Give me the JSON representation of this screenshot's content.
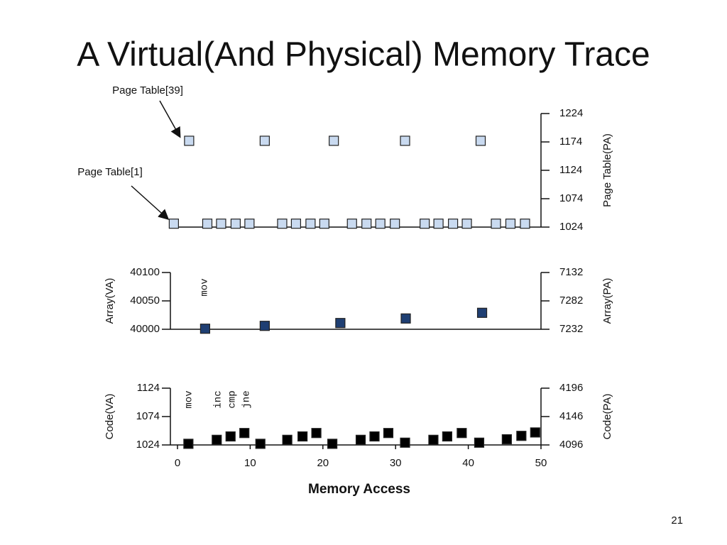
{
  "title": "A Virtual(And Physical) Memory Trace",
  "page_number": "21",
  "chart_data": [
    {
      "type": "scatter",
      "y2label": "Page Table(PA)",
      "xlim": [
        0,
        50
      ],
      "y2lim": [
        1024,
        1224
      ],
      "y2ticks": [
        1024,
        1074,
        1124,
        1174,
        1224
      ],
      "annotations": [
        "Page Table[39]",
        "Page Table[1]"
      ],
      "series": [
        {
          "color": "#c9daf0",
          "axis": "y2",
          "x": [
            1.6,
            12,
            21.5,
            31.3,
            41.7
          ],
          "values": [
            1176,
            1176,
            1176,
            1176,
            1176
          ]
        },
        {
          "color": "#c9daf0",
          "axis": "y2",
          "x": [
            -0.5,
            4.1,
            6.0,
            8.0,
            9.9,
            14.4,
            16.3,
            18.3,
            20.2,
            24.0,
            26.0,
            27.9,
            29.9,
            34.0,
            35.9,
            37.9,
            39.8,
            43.8,
            45.8,
            47.8
          ],
          "values": [
            1030,
            1030,
            1030,
            1030,
            1030,
            1030,
            1030,
            1030,
            1030,
            1030,
            1030,
            1030,
            1030,
            1030,
            1030,
            1030,
            1030,
            1030,
            1030,
            1030
          ]
        }
      ]
    },
    {
      "type": "scatter",
      "ylabel": "Array(VA)",
      "y2label": "Array(PA)",
      "xlim": [
        0,
        50
      ],
      "ylim": [
        40000,
        40100
      ],
      "yticks": [
        40000,
        40050,
        40100
      ],
      "y2tick_labels": [
        "7232",
        "7282",
        "7132"
      ],
      "annotations": [
        "mov"
      ],
      "series": [
        {
          "color": "#1f3f73",
          "x": [
            3.8,
            12.0,
            22.4,
            31.4,
            41.9
          ],
          "values": [
            40001,
            40006,
            40011,
            40019,
            40029
          ]
        }
      ]
    },
    {
      "type": "scatter",
      "ylabel": "Code(VA)",
      "y2label": "Code(PA)",
      "xlabel": "Memory Access",
      "xlim": [
        0,
        50
      ],
      "xticks": [
        0,
        10,
        20,
        30,
        40,
        50
      ],
      "ylim": [
        1024,
        1124
      ],
      "yticks": [
        1024,
        1074,
        1124
      ],
      "y2lim": [
        4096,
        4196
      ],
      "y2ticks": [
        4096,
        4146,
        4196
      ],
      "annotations": [
        "mov",
        "inc",
        "cmp",
        "jne"
      ],
      "series": [
        {
          "color": "#000000",
          "x": [
            1.5,
            5.4,
            7.3,
            9.2,
            11.4,
            15.1,
            17.2,
            19.1,
            21.3,
            25.2,
            27.1,
            29.0,
            31.3,
            35.2,
            37.1,
            39.1,
            41.5,
            45.3,
            47.3,
            49.2
          ],
          "values": [
            1026,
            1033,
            1039,
            1045,
            1026,
            1033,
            1039,
            1045,
            1026,
            1033,
            1039,
            1045,
            1028,
            1033,
            1039,
            1045,
            1028,
            1034,
            1040,
            1046
          ]
        }
      ]
    }
  ]
}
